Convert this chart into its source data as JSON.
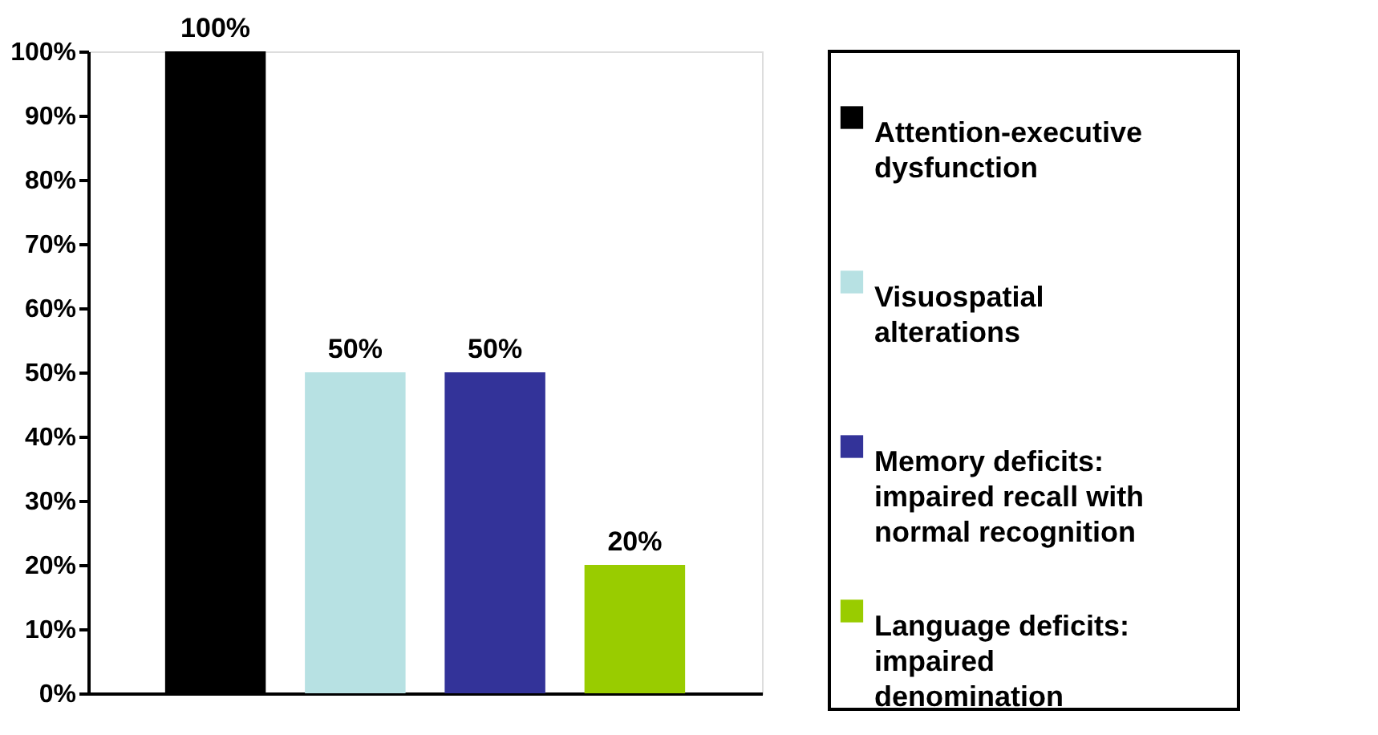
{
  "chart_data": {
    "type": "bar",
    "categories": [
      null,
      null,
      null,
      null
    ],
    "series": [
      {
        "name": "Attention-executive dysfunction",
        "color": "#000000",
        "values": [
          100,
          null,
          null,
          null
        ],
        "value_labels": [
          "100%",
          null,
          null,
          null
        ]
      },
      {
        "name": "Visuospatial alterations",
        "color": "#b7e1e3",
        "values": [
          null,
          50,
          null,
          null
        ],
        "value_labels": [
          null,
          "50%",
          null,
          null
        ]
      },
      {
        "name": "Memory deficits: impaired recall with normal recognition",
        "color": "#333399",
        "values": [
          null,
          null,
          50,
          null
        ],
        "value_labels": [
          null,
          null,
          "50%",
          null
        ]
      },
      {
        "name": "Language deficits: impaired denomination",
        "color": "#99cc00",
        "values": [
          null,
          null,
          null,
          20
        ],
        "value_labels": [
          null,
          null,
          null,
          "20%"
        ]
      }
    ],
    "ylim": [
      0,
      100
    ],
    "yticks": [
      {
        "value": 0,
        "label": "0%"
      },
      {
        "value": 10,
        "label": "10%"
      },
      {
        "value": 20,
        "label": "20%"
      },
      {
        "value": 30,
        "label": "30%"
      },
      {
        "value": 40,
        "label": "40%"
      },
      {
        "value": 50,
        "label": "50%"
      },
      {
        "value": 60,
        "label": "60%"
      },
      {
        "value": 70,
        "label": "70%"
      },
      {
        "value": 80,
        "label": "80%"
      },
      {
        "value": 90,
        "label": "90%"
      },
      {
        "value": 100,
        "label": "100%"
      }
    ],
    "grid": false,
    "legend": "right",
    "tick_labels": "y"
  }
}
